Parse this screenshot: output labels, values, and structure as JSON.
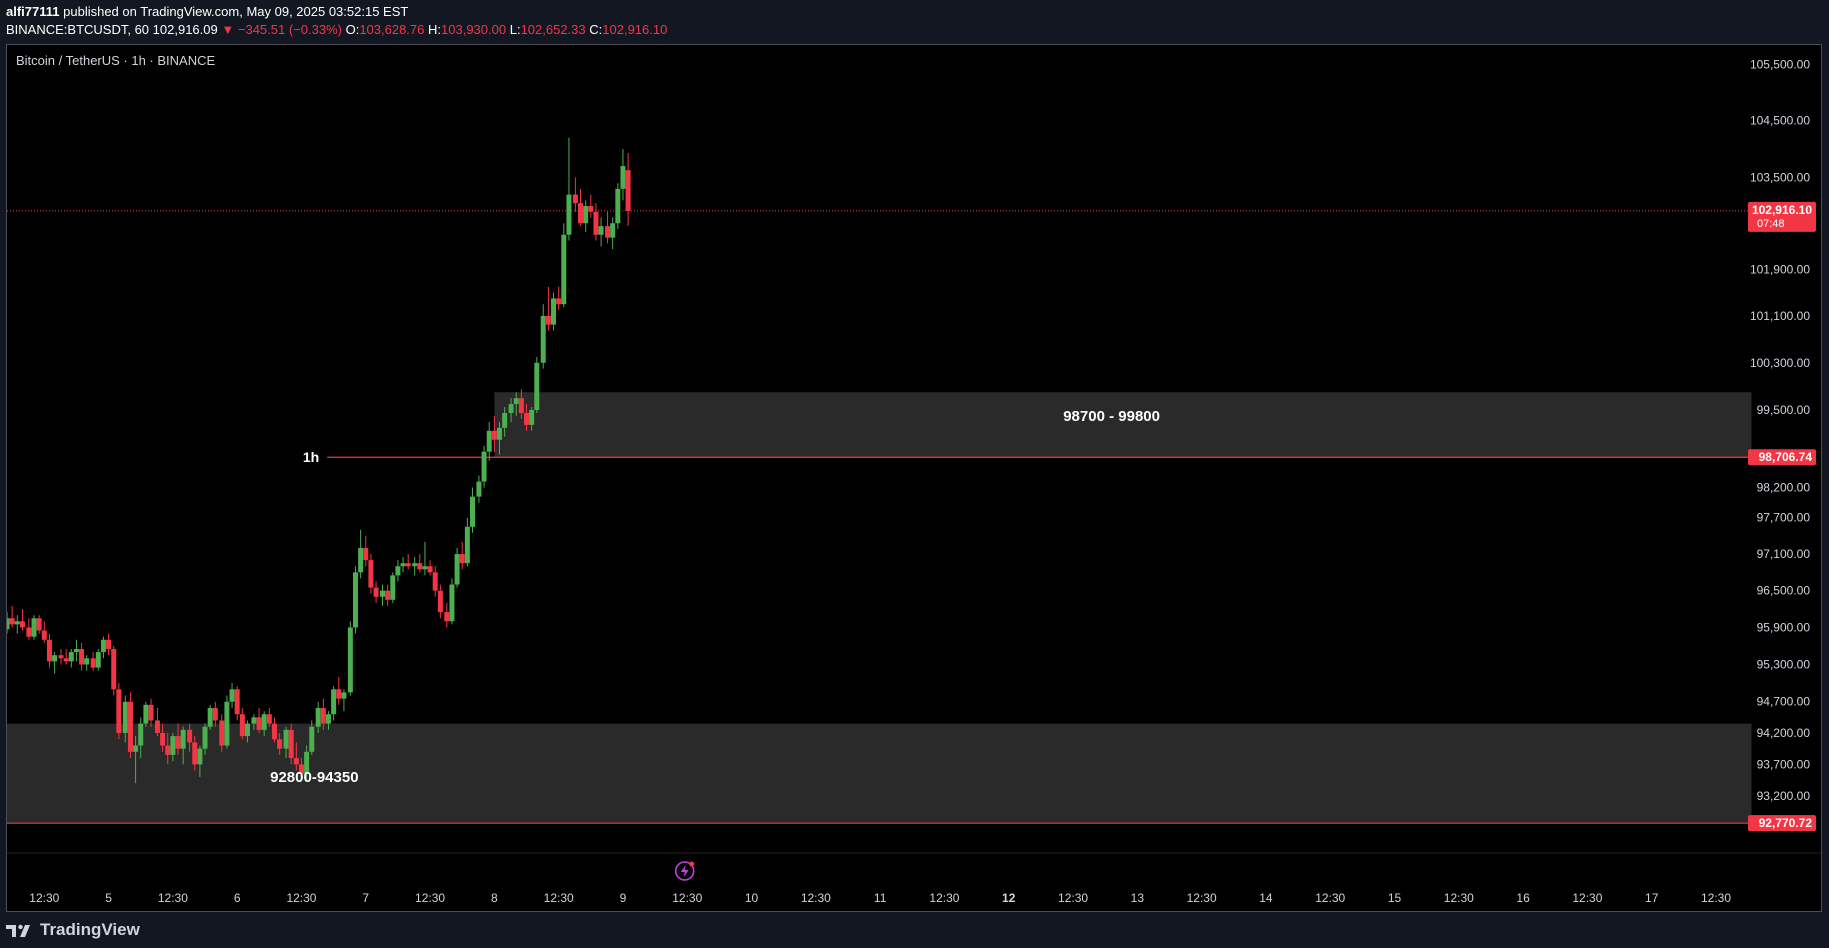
{
  "header": {
    "publisher": "alfi77111",
    "published_text": "published on TradingView.com, May 09, 2025 03:52:15 EST",
    "symbol_full": "BINANCE:BTCUSDT, 60",
    "last_price": "102,916.09",
    "change_arrow": "▼",
    "change": "−345.51 (−0.33%)",
    "open_label": "O:",
    "open": "103,628.76",
    "high_label": "H:",
    "high": "103,930.00",
    "low_label": "L:",
    "low": "102,652.33",
    "close_label": "C:",
    "close": "102,916.10"
  },
  "chart_title": "Bitcoin / TetherUS · 1h · BINANCE",
  "footer": {
    "brand": "TradingView",
    "logo_icon": "tradingview-logo-icon"
  },
  "colors": {
    "up": "#4caf50",
    "down": "#f23645",
    "zone": "#2a2a2a",
    "level_line": "#f23645",
    "background": "#000000",
    "axis_text": "#d1d4dc"
  },
  "chart_data": {
    "type": "candlestick",
    "title": "Bitcoin / TetherUS · 1h · BINANCE",
    "ylim": [
      92350,
      105850
    ],
    "y_scale": "log",
    "y_ticks": [
      {
        "value": 105500,
        "label": "105,500.00"
      },
      {
        "value": 104500,
        "label": "104,500.00"
      },
      {
        "value": 103500,
        "label": "103,500.00"
      },
      {
        "value": 101900,
        "label": "101,900.00"
      },
      {
        "value": 101100,
        "label": "101,100.00"
      },
      {
        "value": 100300,
        "label": "100,300.00"
      },
      {
        "value": 99500,
        "label": "99,500.00"
      },
      {
        "value": 98200,
        "label": "98,200.00"
      },
      {
        "value": 97700,
        "label": "97,700.00"
      },
      {
        "value": 97100,
        "label": "97,100.00"
      },
      {
        "value": 96500,
        "label": "96,500.00"
      },
      {
        "value": 95900,
        "label": "95,900.00"
      },
      {
        "value": 95300,
        "label": "95,300.00"
      },
      {
        "value": 94700,
        "label": "94,700.00"
      },
      {
        "value": 94200,
        "label": "94,200.00"
      },
      {
        "value": 93700,
        "label": "93,700.00"
      },
      {
        "value": 93200,
        "label": "93,200.00"
      }
    ],
    "x_range": [
      4.21,
      17.78
    ],
    "x_ticks": [
      {
        "day": 4.5,
        "label": "12:30",
        "bold": false
      },
      {
        "day": 5,
        "label": "5",
        "bold": false
      },
      {
        "day": 5.5,
        "label": "12:30",
        "bold": false
      },
      {
        "day": 6,
        "label": "6",
        "bold": false
      },
      {
        "day": 6.5,
        "label": "12:30",
        "bold": false
      },
      {
        "day": 7,
        "label": "7",
        "bold": false
      },
      {
        "day": 7.5,
        "label": "12:30",
        "bold": false
      },
      {
        "day": 8,
        "label": "8",
        "bold": false
      },
      {
        "day": 8.5,
        "label": "12:30",
        "bold": false
      },
      {
        "day": 9,
        "label": "9",
        "bold": false
      },
      {
        "day": 9.5,
        "label": "12:30",
        "bold": false
      },
      {
        "day": 10,
        "label": "10",
        "bold": false
      },
      {
        "day": 10.5,
        "label": "12:30",
        "bold": false
      },
      {
        "day": 11,
        "label": "11",
        "bold": false
      },
      {
        "day": 11.5,
        "label": "12:30",
        "bold": false
      },
      {
        "day": 12,
        "label": "12",
        "bold": true
      },
      {
        "day": 12.5,
        "label": "12:30",
        "bold": false
      },
      {
        "day": 13,
        "label": "13",
        "bold": false
      },
      {
        "day": 13.5,
        "label": "12:30",
        "bold": false
      },
      {
        "day": 14,
        "label": "14",
        "bold": false
      },
      {
        "day": 14.5,
        "label": "12:30",
        "bold": false
      },
      {
        "day": 15,
        "label": "15",
        "bold": false
      },
      {
        "day": 15.5,
        "label": "12:30",
        "bold": false
      },
      {
        "day": 16,
        "label": "16",
        "bold": false
      },
      {
        "day": 16.5,
        "label": "12:30",
        "bold": false
      },
      {
        "day": 17,
        "label": "17",
        "bold": false
      },
      {
        "day": 17.5,
        "label": "12:30",
        "bold": false
      }
    ],
    "zones": [
      {
        "day_start": 8.0,
        "day_end": 17.78,
        "low": 98706.74,
        "high": 99800,
        "label": "98700 - 99800",
        "label_day": 12.8,
        "label_price": 99400
      },
      {
        "day_start": 4.21,
        "day_end": 17.78,
        "low": 92770.72,
        "high": 94350,
        "label": "92800-94350",
        "label_day": 6.6,
        "label_price": 93500
      }
    ],
    "levels": [
      {
        "price": 102916.1,
        "label": "102,916.10",
        "sublabel": "07:48",
        "style": "dotted",
        "day_start": 4.21
      },
      {
        "price": 98706.74,
        "label": "98,706.74",
        "style": "solid",
        "day_start": 6.7,
        "name": "1h"
      },
      {
        "price": 92770.72,
        "label": "92,770.72",
        "style": "solid",
        "day_start": 4.21
      }
    ],
    "candles": [
      [
        "4.21",
        95870,
        96150,
        95800,
        96050
      ],
      [
        "4.25",
        96050,
        96250,
        95900,
        95950
      ],
      [
        "4.29",
        95950,
        96100,
        95800,
        96000
      ],
      [
        "4.33",
        96000,
        96200,
        95850,
        95900
      ],
      [
        "4.38",
        95900,
        96050,
        95700,
        95750
      ],
      [
        "4.42",
        95750,
        96100,
        95700,
        96050
      ],
      [
        "4.46",
        96050,
        96100,
        95800,
        95850
      ],
      [
        "4.50",
        95850,
        96000,
        95650,
        95700
      ],
      [
        "4.54",
        95700,
        95800,
        95250,
        95350
      ],
      [
        "4.58",
        95350,
        95500,
        95150,
        95450
      ],
      [
        "4.63",
        95450,
        95550,
        95300,
        95400
      ],
      [
        "4.67",
        95400,
        95550,
        95300,
        95350
      ],
      [
        "4.71",
        95350,
        95550,
        95250,
        95500
      ],
      [
        "4.75",
        95500,
        95700,
        95350,
        95550
      ],
      [
        "4.79",
        95550,
        95650,
        95200,
        95300
      ],
      [
        "4.83",
        95300,
        95450,
        95200,
        95400
      ],
      [
        "4.88",
        95400,
        95500,
        95200,
        95250
      ],
      [
        "4.92",
        95250,
        95550,
        95200,
        95500
      ],
      [
        "4.96",
        95500,
        95750,
        95400,
        95700
      ],
      [
        "5.00",
        95700,
        95800,
        95450,
        95550
      ],
      [
        "5.04",
        95550,
        95600,
        94800,
        94900
      ],
      [
        "5.08",
        94900,
        95000,
        94100,
        94200
      ],
      [
        "5.13",
        94200,
        94800,
        94050,
        94700
      ],
      [
        "5.17",
        94700,
        94850,
        93800,
        93900
      ],
      [
        "5.21",
        93900,
        94150,
        93400,
        94000
      ],
      [
        "5.25",
        94000,
        94450,
        93800,
        94350
      ],
      [
        "5.29",
        94350,
        94700,
        94300,
        94650
      ],
      [
        "5.33",
        94650,
        94750,
        94300,
        94400
      ],
      [
        "5.38",
        94400,
        94600,
        94150,
        94200
      ],
      [
        "5.42",
        94200,
        94350,
        93900,
        94000
      ],
      [
        "5.46",
        94000,
        94200,
        93700,
        93850
      ],
      [
        "5.50",
        93850,
        94200,
        93750,
        94150
      ],
      [
        "5.54",
        94150,
        94350,
        93850,
        93950
      ],
      [
        "5.58",
        93950,
        94300,
        93700,
        94250
      ],
      [
        "5.63",
        94250,
        94350,
        93900,
        94050
      ],
      [
        "5.67",
        94050,
        94150,
        93600,
        93700
      ],
      [
        "5.71",
        93700,
        94000,
        93500,
        93950
      ],
      [
        "5.75",
        93950,
        94350,
        93850,
        94300
      ],
      [
        "5.79",
        94300,
        94650,
        94250,
        94600
      ],
      [
        "5.83",
        94600,
        94700,
        94300,
        94400
      ],
      [
        "5.88",
        94400,
        94500,
        93900,
        94000
      ],
      [
        "5.92",
        94000,
        94800,
        93950,
        94700
      ],
      [
        "5.96",
        94700,
        95000,
        94600,
        94900
      ],
      [
        "6.00",
        94900,
        94950,
        94400,
        94500
      ],
      [
        "6.04",
        94500,
        94600,
        94100,
        94150
      ],
      [
        "6.08",
        94150,
        94400,
        94050,
        94350
      ],
      [
        "6.13",
        94350,
        94500,
        94250,
        94450
      ],
      [
        "6.17",
        94450,
        94600,
        94200,
        94250
      ],
      [
        "6.21",
        94250,
        94550,
        94150,
        94500
      ],
      [
        "6.25",
        94500,
        94600,
        94300,
        94350
      ],
      [
        "6.29",
        94350,
        94450,
        94050,
        94100
      ],
      [
        "6.33",
        94100,
        94200,
        93850,
        93950
      ],
      [
        "6.38",
        93950,
        94300,
        93800,
        94250
      ],
      [
        "6.42",
        94250,
        94350,
        93700,
        93800
      ],
      [
        "6.46",
        93800,
        94050,
        93600,
        93700
      ],
      [
        "6.50",
        93700,
        93800,
        93450,
        93550
      ],
      [
        "6.54",
        93550,
        94000,
        93450,
        93900
      ],
      [
        "6.58",
        93900,
        94400,
        93850,
        94300
      ],
      [
        "6.63",
        94300,
        94700,
        94200,
        94600
      ],
      [
        "6.67",
        94600,
        94750,
        94250,
        94350
      ],
      [
        "6.71",
        94350,
        94550,
        94250,
        94500
      ],
      [
        "6.75",
        94500,
        94950,
        94400,
        94900
      ],
      [
        "6.79",
        94900,
        95100,
        94650,
        94750
      ],
      [
        "6.83",
        94750,
        94900,
        94550,
        94850
      ],
      [
        "6.88",
        94850,
        96000,
        94800,
        95900
      ],
      [
        "6.92",
        95900,
        96900,
        95800,
        96800
      ],
      [
        "6.96",
        96800,
        97500,
        96700,
        97200
      ],
      [
        "7.00",
        97200,
        97400,
        96900,
        97000
      ],
      [
        "7.04",
        97000,
        97100,
        96450,
        96550
      ],
      [
        "7.08",
        96550,
        96650,
        96300,
        96400
      ],
      [
        "7.13",
        96400,
        96600,
        96250,
        96500
      ],
      [
        "7.17",
        96500,
        96600,
        96250,
        96350
      ],
      [
        "7.21",
        96350,
        96800,
        96300,
        96750
      ],
      [
        "7.25",
        96750,
        97000,
        96650,
        96900
      ],
      [
        "7.29",
        96900,
        97050,
        96800,
        96950
      ],
      [
        "7.33",
        96950,
        97100,
        96850,
        96900
      ],
      [
        "7.38",
        96900,
        97050,
        96750,
        96950
      ],
      [
        "7.42",
        96950,
        97100,
        96800,
        96850
      ],
      [
        "7.46",
        96850,
        97300,
        96750,
        96900
      ],
      [
        "7.50",
        96900,
        97000,
        96750,
        96800
      ],
      [
        "7.54",
        96800,
        96900,
        96400,
        96500
      ],
      [
        "7.58",
        96500,
        96600,
        96050,
        96150
      ],
      [
        "7.63",
        96150,
        96300,
        95900,
        96000
      ],
      [
        "7.67",
        96000,
        96700,
        95950,
        96600
      ],
      [
        "7.71",
        96600,
        97200,
        96550,
        97100
      ],
      [
        "7.75",
        97100,
        97300,
        96850,
        96950
      ],
      [
        "7.79",
        96950,
        97700,
        96900,
        97550
      ],
      [
        "7.83",
        97550,
        98200,
        97450,
        98050
      ],
      [
        "7.88",
        98050,
        98400,
        97950,
        98300
      ],
      [
        "7.92",
        98300,
        98900,
        98200,
        98800
      ],
      [
        "7.96",
        98800,
        99300,
        98650,
        99150
      ],
      [
        "8.00",
        99150,
        99400,
        98800,
        99000
      ],
      [
        "8.04",
        99000,
        99300,
        98750,
        99200
      ],
      [
        "8.08",
        99200,
        99550,
        99050,
        99450
      ],
      [
        "8.13",
        99450,
        99700,
        99300,
        99600
      ],
      [
        "8.17",
        99600,
        99800,
        99400,
        99700
      ],
      [
        "8.21",
        99700,
        99850,
        99350,
        99450
      ],
      [
        "8.25",
        99450,
        99600,
        99150,
        99250
      ],
      [
        "8.29",
        99250,
        99550,
        99150,
        99500
      ],
      [
        "8.33",
        99500,
        100400,
        99450,
        100300
      ],
      [
        "8.38",
        100300,
        101300,
        100200,
        101100
      ],
      [
        "8.42",
        101100,
        101600,
        100850,
        100950
      ],
      [
        "8.46",
        100950,
        101500,
        100850,
        101400
      ],
      [
        "8.50",
        101400,
        101600,
        101200,
        101300
      ],
      [
        "8.54",
        101300,
        102700,
        101250,
        102500
      ],
      [
        "8.58",
        102500,
        104200,
        102400,
        103200
      ],
      [
        "8.63",
        103200,
        103500,
        102900,
        103050
      ],
      [
        "8.67",
        103050,
        103300,
        102650,
        102700
      ],
      [
        "8.71",
        102700,
        103100,
        102550,
        103000
      ],
      [
        "8.75",
        103000,
        103200,
        102800,
        102900
      ],
      [
        "8.79",
        102900,
        103050,
        102400,
        102500
      ],
      [
        "8.83",
        102500,
        102800,
        102300,
        102650
      ],
      [
        "8.88",
        102650,
        102900,
        102350,
        102450
      ],
      [
        "8.92",
        102450,
        102800,
        102250,
        102700
      ],
      [
        "8.96",
        102700,
        103400,
        102600,
        103300
      ],
      [
        "9.00",
        103300,
        104000,
        103100,
        103700
      ],
      [
        "9.04",
        103628.76,
        103930,
        102652.33,
        102916.1
      ]
    ]
  }
}
